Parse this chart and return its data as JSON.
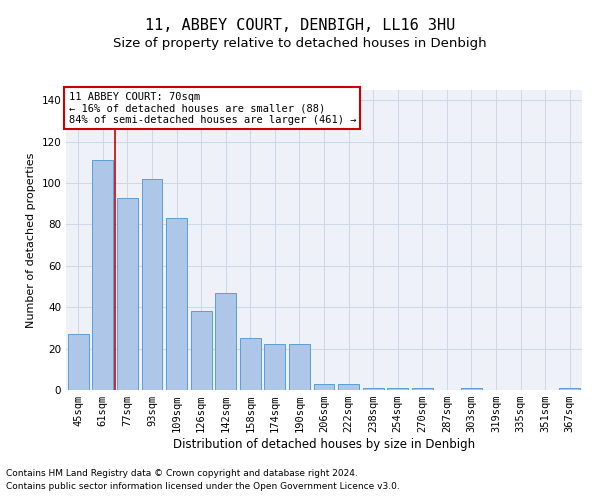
{
  "title1": "11, ABBEY COURT, DENBIGH, LL16 3HU",
  "title2": "Size of property relative to detached houses in Denbigh",
  "xlabel": "Distribution of detached houses by size in Denbigh",
  "ylabel": "Number of detached properties",
  "footnote1": "Contains HM Land Registry data © Crown copyright and database right 2024.",
  "footnote2": "Contains public sector information licensed under the Open Government Licence v3.0.",
  "annotation_line1": "11 ABBEY COURT: 70sqm",
  "annotation_line2": "← 16% of detached houses are smaller (88)",
  "annotation_line3": "84% of semi-detached houses are larger (461) →",
  "bar_color": "#aec6e8",
  "bar_edge_color": "#5a9fd4",
  "vline_color": "#cc0000",
  "vline_x": 1.5,
  "categories": [
    "45sqm",
    "61sqm",
    "77sqm",
    "93sqm",
    "109sqm",
    "126sqm",
    "142sqm",
    "158sqm",
    "174sqm",
    "190sqm",
    "206sqm",
    "222sqm",
    "238sqm",
    "254sqm",
    "270sqm",
    "287sqm",
    "303sqm",
    "319sqm",
    "335sqm",
    "351sqm",
    "367sqm"
  ],
  "values": [
    27,
    111,
    93,
    102,
    83,
    38,
    47,
    25,
    22,
    22,
    3,
    3,
    1,
    1,
    1,
    0,
    1,
    0,
    0,
    0,
    1
  ],
  "ylim": [
    0,
    145
  ],
  "yticks": [
    0,
    20,
    40,
    60,
    80,
    100,
    120,
    140
  ],
  "grid_color": "#d0d8e8",
  "background_color": "#eef2f8",
  "annotation_box_color": "#ffffff",
  "annotation_box_edge": "#cc0000",
  "title1_fontsize": 11,
  "title2_fontsize": 9.5,
  "xlabel_fontsize": 8.5,
  "ylabel_fontsize": 8,
  "tick_fontsize": 7.5,
  "annotation_fontsize": 7.5,
  "footnote_fontsize": 6.5
}
